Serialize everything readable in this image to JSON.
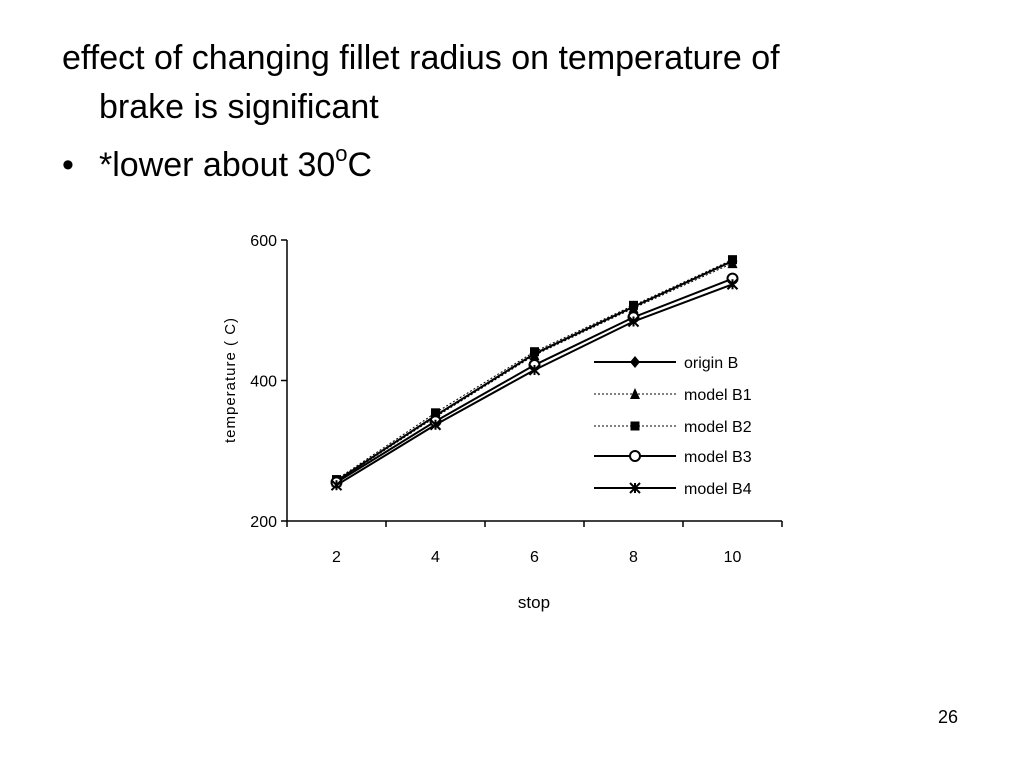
{
  "slide": {
    "line1": "effect of changing fillet radius on temperature of",
    "line2": "brake is significant",
    "bullet_char": "•",
    "bullet_text": "*lower about 30",
    "bullet_sup": "o",
    "bullet_tail": "C",
    "page_number": "26"
  },
  "chart_data": {
    "type": "line",
    "title": "",
    "xlabel": "stop",
    "ylabel": "temperature ( C)",
    "categories": [
      "2",
      "4",
      "6",
      "8",
      "10"
    ],
    "ylim": [
      200,
      600
    ],
    "yticks": [
      "200",
      "400",
      "600"
    ],
    "grid": false,
    "legend_position": "right",
    "series": [
      {
        "name": "origin B",
        "marker": "diamond",
        "line": "solid",
        "values": [
          257,
          350,
          438,
          505,
          570
        ]
      },
      {
        "name": "model B1",
        "marker": "triangle",
        "line": "dotted",
        "values": [
          256,
          348,
          436,
          503,
          567
        ]
      },
      {
        "name": "model B2",
        "marker": "square",
        "line": "dotted",
        "values": [
          259,
          354,
          441,
          507,
          572
        ]
      },
      {
        "name": "model B3",
        "marker": "circle",
        "line": "solid",
        "values": [
          255,
          342,
          422,
          490,
          545
        ]
      },
      {
        "name": "model B4",
        "marker": "star",
        "line": "solid",
        "values": [
          251,
          337,
          415,
          484,
          537
        ]
      }
    ]
  }
}
